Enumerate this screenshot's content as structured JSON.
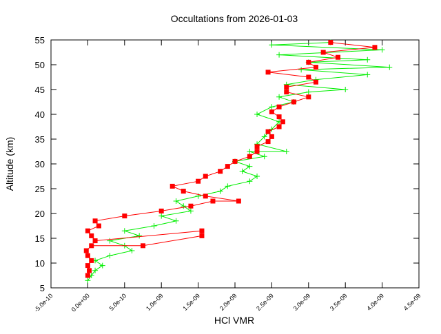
{
  "chart_data": {
    "type": "line",
    "title": "Occultations from 2026-01-03",
    "x_label": "HCl VMR",
    "y_label": "Altitude (km)",
    "xlim": [
      -5e-10,
      4.5e-09
    ],
    "ylim": [
      5,
      55
    ],
    "xticks": [
      {
        "value": -5e-10,
        "label": "-5.0e-10"
      },
      {
        "value": 0,
        "label": "0.0e+00"
      },
      {
        "value": 5e-10,
        "label": "5.0e-10"
      },
      {
        "value": 1e-09,
        "label": "1.0e-09"
      },
      {
        "value": 1.5e-09,
        "label": "1.5e-09"
      },
      {
        "value": 2e-09,
        "label": "2.0e-09"
      },
      {
        "value": 2.5e-09,
        "label": "2.5e-09"
      },
      {
        "value": 3e-09,
        "label": "3.0e-09"
      },
      {
        "value": 3.5e-09,
        "label": "3.5e-09"
      },
      {
        "value": 4e-09,
        "label": "4.0e-09"
      },
      {
        "value": 4.5e-09,
        "label": "4.5e-09"
      }
    ],
    "yticks": [
      5,
      10,
      15,
      20,
      25,
      30,
      35,
      40,
      45,
      50,
      55
    ],
    "series": [
      {
        "color": "#00ee00",
        "marker": "plus",
        "x": [
          0,
          5e-11,
          1e-10,
          2e-10,
          1e-10,
          3e-10,
          6e-10,
          5e-10,
          3e-10,
          7e-10,
          5e-10,
          9e-10,
          1.2e-09,
          1e-09,
          1.4e-09,
          1.3e-09,
          1.2e-09,
          1.5e-09,
          1.8e-09,
          1.9e-09,
          2.2e-09,
          2.3e-09,
          2.1e-09,
          2.2e-09,
          2e-09,
          2.4e-09,
          2.2e-09,
          2.7e-09,
          2.3e-09,
          2.4e-09,
          2.5e-09,
          2.6e-09,
          2.3e-09,
          2.5e-09,
          2.8e-09,
          2.6e-09,
          3e-09,
          3.5e-09,
          2.7e-09,
          3.1e-09,
          3.8e-09,
          2.9e-09,
          4.1e-09,
          3e-09,
          3.8e-09,
          2.6e-09,
          4e-09,
          2.5e-09,
          3.3e-09
        ],
        "values": [
          6.5,
          7.5,
          8.5,
          9.5,
          10.5,
          11.5,
          12.5,
          13.5,
          14.5,
          15.5,
          16.5,
          17.5,
          18.5,
          19.5,
          20.5,
          21.5,
          22.5,
          23.5,
          24.5,
          25.5,
          26.5,
          27.5,
          28.5,
          29.5,
          30.5,
          31.5,
          32.5,
          32.5,
          34,
          35.5,
          37,
          38.5,
          40,
          41.5,
          42.5,
          43.5,
          44.5,
          45,
          46,
          47,
          48,
          49,
          49.5,
          50.5,
          51,
          52,
          53,
          54,
          54.5
        ]
      },
      {
        "color": "#ff0000",
        "marker": "square",
        "x": [
          0,
          2e-11,
          0,
          5e-11,
          0,
          -2e-11,
          5e-11,
          7.5e-10,
          1.55e-09,
          1.55e-09,
          1e-10,
          5e-11,
          0,
          1.5e-10,
          1e-10,
          5e-10,
          1e-09,
          1.4e-09,
          1.7e-09,
          2.05e-09,
          1.6e-09,
          1.3e-09,
          1.15e-09,
          1.5e-09,
          1.6e-09,
          1.8e-09,
          1.9e-09,
          2e-09,
          2.2e-09,
          2.3e-09,
          2.3e-09,
          2.45e-09,
          2.5e-09,
          2.45e-09,
          2.6e-09,
          2.65e-09,
          2.6e-09,
          2.5e-09,
          2.6e-09,
          2.8e-09,
          3e-09,
          2.7e-09,
          2.7e-09,
          3.1e-09,
          3e-09,
          2.45e-09,
          3.1e-09,
          3e-09,
          3.4e-09,
          3.2e-09,
          3.9e-09,
          3.3e-09
        ],
        "values": [
          7.5,
          8.5,
          9.5,
          10.5,
          11.5,
          12.5,
          13.5,
          13.5,
          15.5,
          16.5,
          14.5,
          15.5,
          16.5,
          17.5,
          18.5,
          19.5,
          20.5,
          21.5,
          22.5,
          22.5,
          23.5,
          24.5,
          25.5,
          26.5,
          27.5,
          28.5,
          29.5,
          30.5,
          31.5,
          32.5,
          33.5,
          34.5,
          35.5,
          36.5,
          37.5,
          38.5,
          39.5,
          40.5,
          41.5,
          42.5,
          43.5,
          44.5,
          45.5,
          46.5,
          47.5,
          48.5,
          49.5,
          50.5,
          51.5,
          52.5,
          53.5,
          54.5
        ]
      }
    ]
  }
}
